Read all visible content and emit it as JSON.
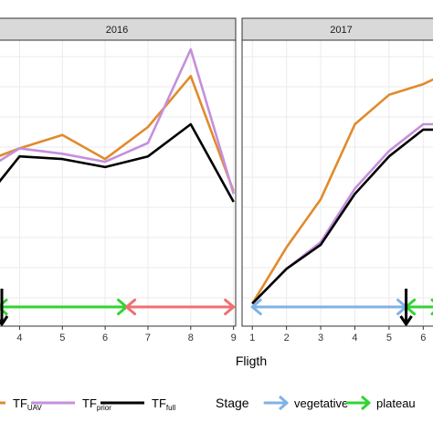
{
  "chart_data": {
    "type": "line",
    "xlabel": "Fligth",
    "colors": {
      "TF_UAV": "#e08b2c",
      "TF_prior": "#c58fdc",
      "TF_full": "#000000",
      "vegetative": "#7fb2e5",
      "plateau": "#33d333",
      "decline": "#ef6f73"
    },
    "panels": [
      {
        "label": "2016",
        "xticks": [
          4,
          5,
          6,
          7,
          8,
          9
        ],
        "xlim": [
          3.5,
          9.05
        ],
        "ylim": [
          0,
          1
        ],
        "grid": true,
        "series": [
          {
            "key": "TF_UAV",
            "x": [
              3.5,
              4,
              5,
              6,
              7,
              8,
              9
            ],
            "y": [
              0.6,
              0.63,
              0.68,
              0.59,
              0.71,
              0.9,
              0.47
            ]
          },
          {
            "key": "TF_prior",
            "x": [
              3.5,
              4,
              5,
              6,
              7,
              8,
              9
            ],
            "y": [
              0.58,
              0.63,
              0.61,
              0.58,
              0.65,
              1.0,
              0.46
            ]
          },
          {
            "key": "TF_full",
            "x": [
              3.5,
              4,
              5,
              6,
              7,
              8,
              9
            ],
            "y": [
              0.5,
              0.6,
              0.59,
              0.56,
              0.6,
              0.72,
              0.43
            ]
          }
        ],
        "stage_arrows": [
          {
            "stage": "plateau",
            "from": 3.5,
            "to": 6.5
          },
          {
            "stage": "decline",
            "from": 6.5,
            "to": 9.0
          }
        ],
        "stage_markers": [
          3.5
        ]
      },
      {
        "label": "2017",
        "xticks": [
          1,
          2,
          3,
          4,
          5,
          6
        ],
        "xlim": [
          0.7,
          6.5
        ],
        "ylim": [
          0,
          1
        ],
        "grid": true,
        "series": [
          {
            "key": "TF_UAV",
            "x": [
              1,
              2,
              3,
              4,
              5,
              6,
              6.5
            ],
            "y": [
              0.05,
              0.26,
              0.44,
              0.72,
              0.83,
              0.87,
              0.9
            ]
          },
          {
            "key": "TF_prior",
            "x": [
              1,
              2,
              3,
              4,
              5,
              6,
              6.5
            ],
            "y": [
              0.05,
              0.18,
              0.28,
              0.48,
              0.62,
              0.72,
              0.72
            ]
          },
          {
            "key": "TF_full",
            "x": [
              1,
              2,
              3,
              4,
              5,
              6,
              6.5
            ],
            "y": [
              0.05,
              0.18,
              0.27,
              0.46,
              0.6,
              0.7,
              0.7
            ]
          }
        ],
        "stage_arrows": [
          {
            "stage": "vegetative",
            "from": 1.0,
            "to": 5.5
          },
          {
            "stage": "plateau",
            "from": 5.5,
            "to": 6.5
          }
        ],
        "stage_markers": [
          5.5
        ]
      }
    ],
    "legend": {
      "placement": "bottom",
      "series": [
        {
          "key": "TF_UAV",
          "main": "TF",
          "sub": "UAV"
        },
        {
          "key": "TF_prior",
          "main": "TF",
          "sub": "prior"
        },
        {
          "key": "TF_full",
          "main": "TF",
          "sub": "full"
        }
      ],
      "stage_title": "Stage",
      "stages": [
        {
          "key": "vegetative",
          "label": "vegetative"
        },
        {
          "key": "plateau",
          "label": "plateau"
        }
      ]
    }
  }
}
